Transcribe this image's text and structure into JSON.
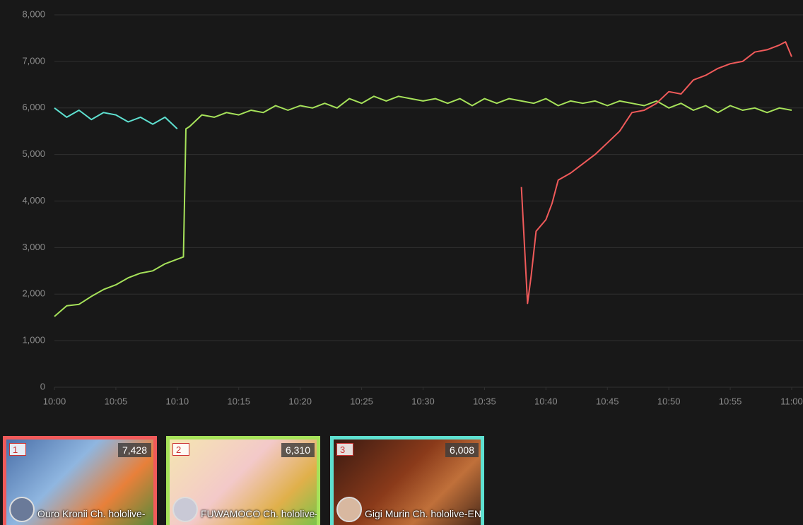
{
  "chart_data": {
    "type": "line",
    "xlim": [
      0,
      60
    ],
    "xticks": [
      {
        "value": 0,
        "label": "10:00"
      },
      {
        "value": 5,
        "label": "10:05"
      },
      {
        "value": 10,
        "label": "10:10"
      },
      {
        "value": 15,
        "label": "10:15"
      },
      {
        "value": 20,
        "label": "10:20"
      },
      {
        "value": 25,
        "label": "10:25"
      },
      {
        "value": 30,
        "label": "10:30"
      },
      {
        "value": 35,
        "label": "10:35"
      },
      {
        "value": 40,
        "label": "10:40"
      },
      {
        "value": 45,
        "label": "10:45"
      },
      {
        "value": 50,
        "label": "10:50"
      },
      {
        "value": 55,
        "label": "10:55"
      },
      {
        "value": 60,
        "label": "11:00"
      }
    ],
    "ylim": [
      0,
      8000
    ],
    "yticks": [
      0,
      {
        "value": 1000,
        "label": "1,000"
      },
      {
        "value": 2000,
        "label": "2,000"
      },
      {
        "value": 3000,
        "label": "3,000"
      },
      {
        "value": 4000,
        "label": "4,000"
      },
      {
        "value": 5000,
        "label": "5,000"
      },
      {
        "value": 6000,
        "label": "6,000"
      },
      {
        "value": 7000,
        "label": "7,000"
      },
      {
        "value": 8000,
        "label": "8,000"
      }
    ],
    "grid": true,
    "series": [
      {
        "color": "#5ee0d0",
        "x": [
          0,
          1,
          2,
          3,
          4,
          5,
          6,
          7,
          8,
          9,
          10
        ],
        "values": [
          6000,
          5800,
          5950,
          5750,
          5900,
          5850,
          5700,
          5800,
          5650,
          5800,
          5550
        ]
      },
      {
        "color": "#a6e25a",
        "x": [
          0,
          1,
          2,
          3,
          4,
          5,
          6,
          7,
          8,
          9,
          10,
          10.5,
          10.7,
          11,
          12,
          13,
          14,
          15,
          16,
          17,
          18,
          19,
          20,
          21,
          22,
          23,
          24,
          25,
          26,
          27,
          28,
          29,
          30,
          31,
          32,
          33,
          34,
          35,
          36,
          37,
          38,
          39,
          40,
          41,
          42,
          43,
          44,
          45,
          46,
          47,
          48,
          49,
          50,
          51,
          52,
          53,
          54,
          55,
          56,
          57,
          58,
          59,
          60
        ],
        "values": [
          1520,
          1750,
          1780,
          1950,
          2100,
          2200,
          2350,
          2450,
          2500,
          2650,
          2750,
          2800,
          5550,
          5600,
          5850,
          5800,
          5900,
          5850,
          5950,
          5900,
          6050,
          5950,
          6050,
          6000,
          6100,
          6000,
          6200,
          6100,
          6250,
          6150,
          6250,
          6200,
          6150,
          6200,
          6100,
          6200,
          6050,
          6200,
          6100,
          6200,
          6150,
          6100,
          6200,
          6050,
          6150,
          6100,
          6150,
          6050,
          6150,
          6100,
          6050,
          6150,
          6000,
          6100,
          5950,
          6050,
          5900,
          6050,
          5950,
          6000,
          5900,
          6000,
          5950
        ]
      },
      {
        "color": "#f05a5a",
        "x": [
          38,
          38.5,
          38.8,
          39.2,
          40,
          40.5,
          41,
          42,
          43,
          44,
          45,
          46,
          47,
          48,
          49,
          50,
          51,
          52,
          53,
          54,
          55,
          56,
          57,
          58,
          59,
          59.5,
          60
        ],
        "values": [
          4300,
          1800,
          2400,
          3350,
          3600,
          3950,
          4450,
          4600,
          4800,
          5000,
          5250,
          5500,
          5900,
          5950,
          6100,
          6350,
          6300,
          6600,
          6700,
          6850,
          6950,
          7000,
          7200,
          7250,
          7350,
          7420,
          7100
        ]
      }
    ]
  },
  "cards": [
    {
      "rank": "1",
      "viewers": "7,428",
      "name": "Ouro Kronii Ch. hololive-"
    },
    {
      "rank": "2",
      "viewers": "6,310",
      "name": "FUWAMOCO Ch. hololive-"
    },
    {
      "rank": "3",
      "viewers": "6,008",
      "name": "Gigi Murin Ch. hololive-EN"
    }
  ]
}
